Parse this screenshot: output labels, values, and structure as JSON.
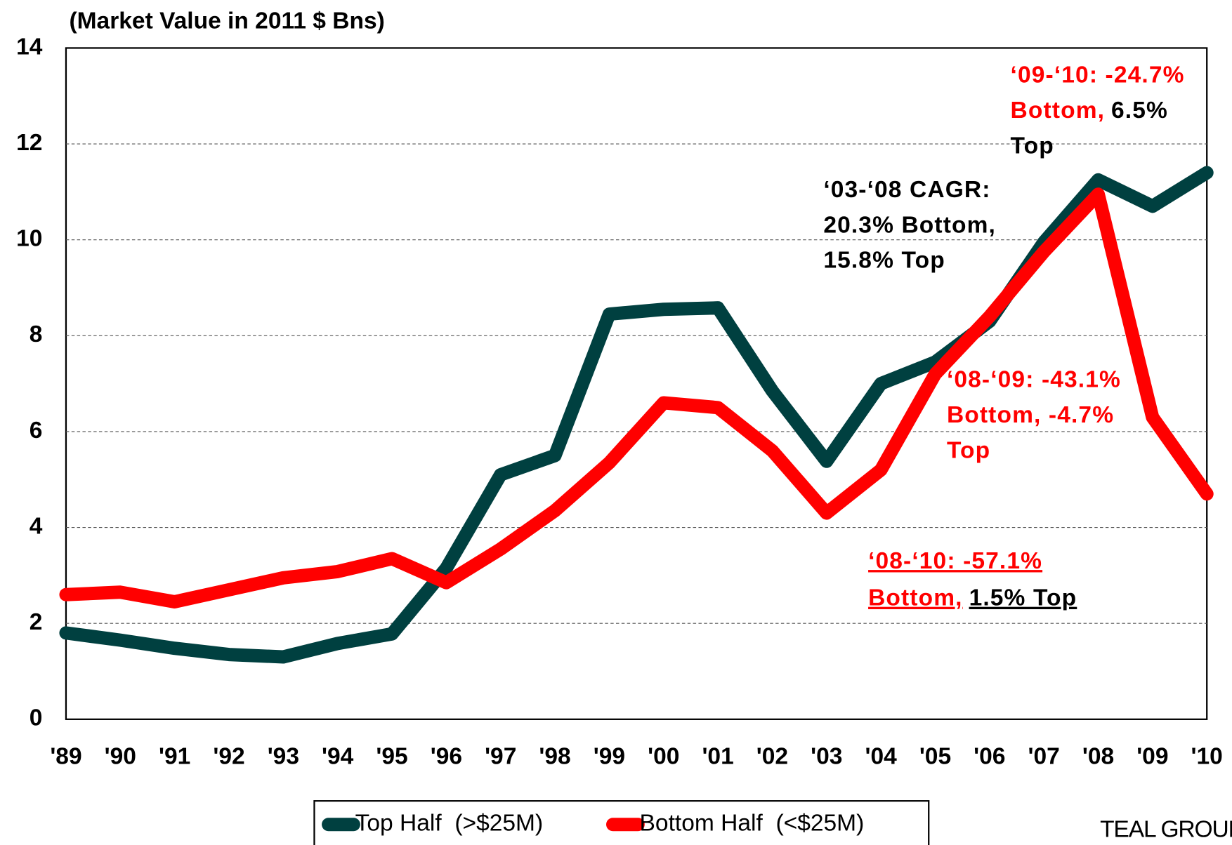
{
  "chart_data": {
    "type": "line",
    "axis_title": "(Market Value in 2011 $ Bns)",
    "categories": [
      "'89",
      "'90",
      "'91",
      "'92",
      "'93",
      "'94",
      "'95",
      "'96",
      "'97",
      "'98",
      "'99",
      "'00",
      "'01",
      "'02",
      "'03",
      "'04",
      "'05",
      "'06",
      "'07",
      "'08",
      "'09",
      "'10"
    ],
    "series": [
      {
        "name": "Top Half  (>$25M)",
        "color": "#004040",
        "values": [
          1.8,
          1.65,
          1.48,
          1.35,
          1.3,
          1.58,
          1.78,
          3.15,
          5.1,
          5.5,
          8.45,
          8.55,
          8.58,
          6.85,
          5.38,
          7.0,
          7.45,
          8.3,
          9.95,
          11.25,
          10.7,
          11.4
        ]
      },
      {
        "name": "Bottom Half  (<$25M)",
        "color": "#ff0000",
        "values": [
          2.6,
          2.65,
          2.45,
          2.7,
          2.95,
          3.08,
          3.35,
          2.85,
          3.55,
          4.35,
          5.35,
          6.6,
          6.5,
          5.6,
          4.3,
          5.2,
          7.2,
          8.4,
          9.75,
          10.95,
          6.3,
          4.7
        ]
      }
    ],
    "ylim": [
      0,
      14
    ],
    "yticks": [
      0,
      2,
      4,
      6,
      8,
      10,
      12,
      14
    ],
    "grid": true,
    "annotations": [
      {
        "underline": false,
        "lines": [
          [
            {
              "text": "‘09-‘10: -24.7%",
              "color": "#ff0000"
            }
          ],
          [
            {
              "text": "Bottom,",
              "color": "#ff0000"
            },
            {
              "text": "6.5%",
              "color": "#000000"
            }
          ],
          [
            {
              "text": "Top",
              "color": "#000000"
            }
          ]
        ]
      },
      {
        "underline": false,
        "lines": [
          [
            {
              "text": "‘03-‘08 CAGR:",
              "color": "#000000"
            }
          ],
          [
            {
              "text": "20.3% Bottom,",
              "color": "#000000"
            }
          ],
          [
            {
              "text": "15.8% Top",
              "color": "#000000"
            }
          ]
        ]
      },
      {
        "underline": false,
        "lines": [
          [
            {
              "text": "‘08-‘09: -43.1%",
              "color": "#ff0000"
            }
          ],
          [
            {
              "text": "Bottom, -4.7%",
              "color": "#ff0000"
            }
          ],
          [
            {
              "text": "Top",
              "color": "#ff0000"
            }
          ]
        ]
      },
      {
        "underline": true,
        "lines": [
          [
            {
              "text": "‘08-‘10: -57.1%",
              "color": "#ff0000"
            }
          ],
          [
            {
              "text": "Bottom,",
              "color": "#ff0000"
            },
            {
              "text": "1.5% Top",
              "color": "#000000"
            }
          ]
        ]
      }
    ],
    "source": "TEAL GROUP"
  }
}
